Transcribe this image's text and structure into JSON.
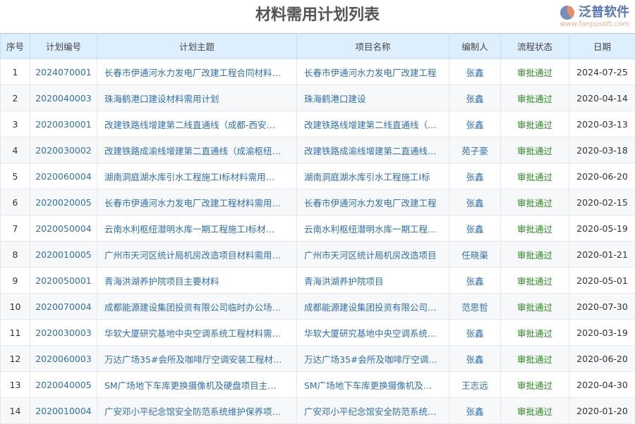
{
  "title": "材料需用计划列表",
  "columns": [
    "序号",
    "计划编号",
    "计划主题",
    "项目名称",
    "编制人",
    "流程状态",
    "日期"
  ],
  "rows": [
    [
      "1",
      "2024070001",
      "长春市伊通河水力发电厂改建工程合同材料…",
      "长春市伊通河水力发电厂改建工程",
      "张鑫",
      "审批通过",
      "2024-07-25"
    ],
    [
      "2",
      "2020040003",
      "珠海鹤港口建设材料需用计划",
      "珠海鹤港口建设",
      "张鑫",
      "审批通过",
      "2020-04-14"
    ],
    [
      "3",
      "2020030001",
      "改建铁路线增建第二线直通线（成都-西安…",
      "改建铁路线增建第二线直通线（…",
      "张鑫",
      "审批通过",
      "2020-03-13"
    ],
    [
      "4",
      "2020030002",
      "改建铁路成渝线增建第二直通线（成渝枢纽…",
      "改建铁路成渝线增建第二直通线…",
      "苑子豪",
      "审批通过",
      "2020-03-18"
    ],
    [
      "5",
      "2020060004",
      "湖南洞庭湖水库引水工程施工I标材料需用…",
      "湖南洞庭湖水库引水工程施工I标",
      "张鑫",
      "审批通过",
      "2020-06-20"
    ],
    [
      "6",
      "2020020005",
      "长春市伊通河水力发电厂改建工程材料需用…",
      "长春市伊通河水力发电厂改建工程",
      "张鑫",
      "审批通过",
      "2020-02-15"
    ],
    [
      "7",
      "2020050004",
      "云南水利枢纽潜明水库一期工程施工I标材…",
      "云南水利枢纽潜明水库一期工程…",
      "张鑫",
      "审批通过",
      "2020-05-19"
    ],
    [
      "8",
      "2020010005",
      "广州市天河区统计局机房改造项目材料需用…",
      "广州市天河区统计局机房改造项目",
      "任晓渠",
      "审批通过",
      "2020-01-21"
    ],
    [
      "9",
      "2020050001",
      "青海洪湖养护院项目主要材料",
      "青海洪湖养护院项目",
      "张鑫",
      "审批通过",
      "2020-05-01"
    ],
    [
      "10",
      "2020070004",
      "成都能源建设集团投资有限公司临时办公场…",
      "成都能源建设集团投资有限公司…",
      "范思哲",
      "审批通过",
      "2020-07-30"
    ],
    [
      "11",
      "2020030003",
      "华软大厦研究基地中央空调系统工程材料需…",
      "华软大厦研究基地中央空调系统…",
      "张鑫",
      "审批通过",
      "2020-03-19"
    ],
    [
      "12",
      "2020060003",
      "万达广场35#会所及咖啡厅空调安装工程材…",
      "万达广场35#会所及咖啡厅空调…",
      "张鑫",
      "审批通过",
      "2020-06-20"
    ],
    [
      "13",
      "2020040005",
      "SM广场地下车库更换摄像机及硬盘项目主…",
      "SM广场地下车库更换摄像机及…",
      "王志远",
      "审批通过",
      "2020-04-30"
    ],
    [
      "14",
      "2020010004",
      "广安邓小平纪念馆安全防范系统维护保养项…",
      "广安邓小平纪念馆安全防范系统…",
      "张鑫",
      "审批通过",
      "2020-01-20"
    ]
  ],
  "watermark": {
    "text": "泛普软件",
    "url": "www.fanpusoft.com"
  },
  "colors": {
    "link": "#2f6fb3",
    "status": "#2a8a1f",
    "header_bg": "#ddeefc"
  }
}
